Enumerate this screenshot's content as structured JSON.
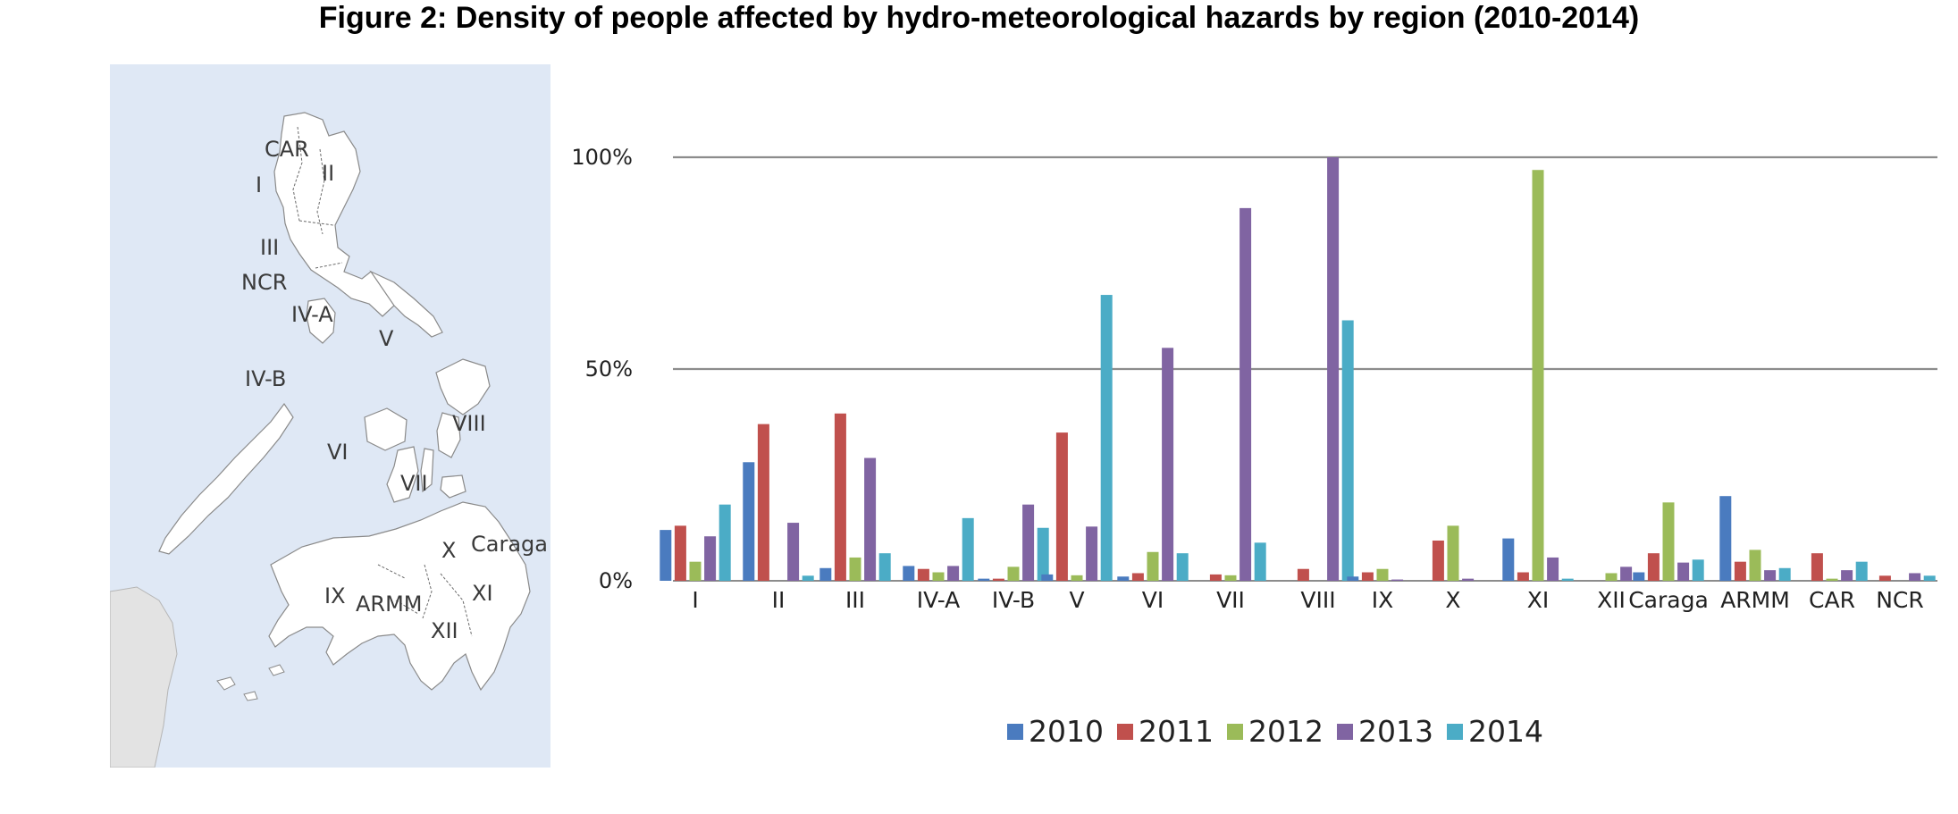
{
  "title": "Figure 2: Density of people affected by hydro-meteorological hazards by region (2010-2014)",
  "map": {
    "labels": [
      {
        "key": "CAR",
        "text": "CAR"
      },
      {
        "key": "II",
        "text": "II"
      },
      {
        "key": "I",
        "text": "I"
      },
      {
        "key": "III",
        "text": "III"
      },
      {
        "key": "NCR",
        "text": "NCR"
      },
      {
        "key": "IV-A",
        "text": "IV-A"
      },
      {
        "key": "V",
        "text": "V"
      },
      {
        "key": "IV-B",
        "text": "IV-B"
      },
      {
        "key": "VIII",
        "text": "VIII"
      },
      {
        "key": "VI",
        "text": "VI"
      },
      {
        "key": "VII",
        "text": "VII"
      },
      {
        "key": "X",
        "text": "X"
      },
      {
        "key": "Caraga",
        "text": "Caraga"
      },
      {
        "key": "XI",
        "text": "XI"
      },
      {
        "key": "IX",
        "text": "IX"
      },
      {
        "key": "ARMM",
        "text": "ARMM"
      },
      {
        "key": "XII",
        "text": "XII"
      }
    ],
    "colors": {
      "sea": "#dfe8f5",
      "land": "#ffffff",
      "foreign_land": "#e3e3e3",
      "border": "#8a8a8a"
    }
  },
  "chart_data": {
    "type": "bar",
    "title": "Figure 2: Density of people affected by hydro-meteorological hazards by region (2010-2014)",
    "xlabel": "",
    "ylabel": "",
    "ylim": [
      0,
      100
    ],
    "yticks": [
      "0%",
      "50%",
      "100%"
    ],
    "ytick_values": [
      0,
      50,
      100
    ],
    "grid": true,
    "legend_position": "bottom",
    "categories": [
      "I",
      "II",
      "III",
      "IV-A",
      "IV-B",
      "V",
      "VI",
      "VII",
      "VIII",
      "IX",
      "X",
      "XI",
      "XII",
      "Caraga",
      "ARMM",
      "CAR",
      "NCR"
    ],
    "series": [
      {
        "name": "2010",
        "color": "#4a7bbf",
        "values": [
          12,
          28,
          3,
          3.5,
          0.5,
          1.5,
          1,
          0,
          0,
          1,
          0,
          10,
          0,
          2,
          20,
          0,
          0
        ]
      },
      {
        "name": "2011",
        "color": "#c0504d",
        "values": [
          13,
          37,
          39.5,
          2.8,
          0.5,
          35,
          1.8,
          1.5,
          2.8,
          2,
          9.5,
          2,
          0,
          6.5,
          4.5,
          6.5,
          1.2
        ]
      },
      {
        "name": "2012",
        "color": "#9bbb59",
        "values": [
          4.5,
          0,
          5.5,
          2,
          3.3,
          1.3,
          6.8,
          1.3,
          0,
          2.8,
          13,
          97,
          1.8,
          18.5,
          7.3,
          0.5,
          0
        ]
      },
      {
        "name": "2013",
        "color": "#8064a2",
        "values": [
          10.5,
          13.7,
          29,
          3.5,
          18,
          12.8,
          55,
          88,
          100,
          0.3,
          0.5,
          5.5,
          3.3,
          4.3,
          2.5,
          2.5,
          1.8
        ]
      },
      {
        "name": "2014",
        "color": "#4bacc6",
        "values": [
          18,
          1.2,
          6.5,
          14.8,
          12.5,
          67.5,
          6.5,
          9,
          61.5,
          0,
          0,
          0.5,
          0,
          5,
          3,
          4.5,
          1.2
        ]
      }
    ]
  }
}
